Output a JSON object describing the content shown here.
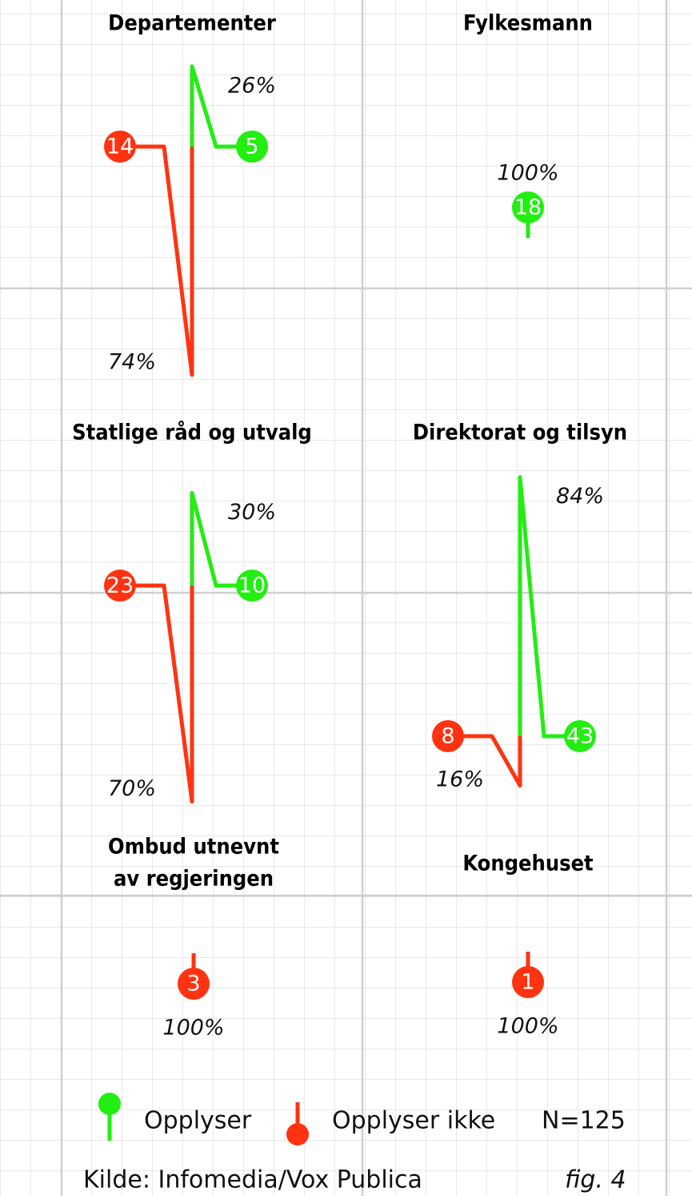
{
  "chart_data": {
    "type": "spike",
    "panels": [
      {
        "title": [
          "Departementer"
        ],
        "opplyser": {
          "count": 5,
          "percent": 26,
          "percent_label": "26%"
        },
        "opplyser_ikke": {
          "count": 14,
          "percent": 74,
          "percent_label": "74%"
        }
      },
      {
        "title": [
          "Fylkesmann"
        ],
        "opplyser": {
          "count": 18,
          "percent": 100,
          "percent_label": "100%"
        }
      },
      {
        "title": [
          "Statlige råd og utvalg"
        ],
        "opplyser": {
          "count": 10,
          "percent": 30,
          "percent_label": "30%"
        },
        "opplyser_ikke": {
          "count": 23,
          "percent": 70,
          "percent_label": "70%"
        }
      },
      {
        "title": [
          "Direktorat og tilsyn"
        ],
        "opplyser": {
          "count": 43,
          "percent": 84,
          "percent_label": "84%"
        },
        "opplyser_ikke": {
          "count": 8,
          "percent": 16,
          "percent_label": "16%"
        }
      },
      {
        "title": [
          "Ombud utnevnt",
          "av regjeringen"
        ],
        "opplyser_ikke": {
          "count": 3,
          "percent": 100,
          "percent_label": "100%"
        }
      },
      {
        "title": [
          "Kongehuset"
        ],
        "opplyser_ikke": {
          "count": 1,
          "percent": 100,
          "percent_label": "100%"
        }
      }
    ],
    "legend": [
      {
        "name": "Opplyser",
        "color": "#22ee11"
      },
      {
        "name": "Opplyser ikke",
        "color": "#ff3311"
      }
    ],
    "total": "N=125",
    "source": "Kilde: Infomedia/Vox Publica",
    "figure": "fig. 4"
  }
}
